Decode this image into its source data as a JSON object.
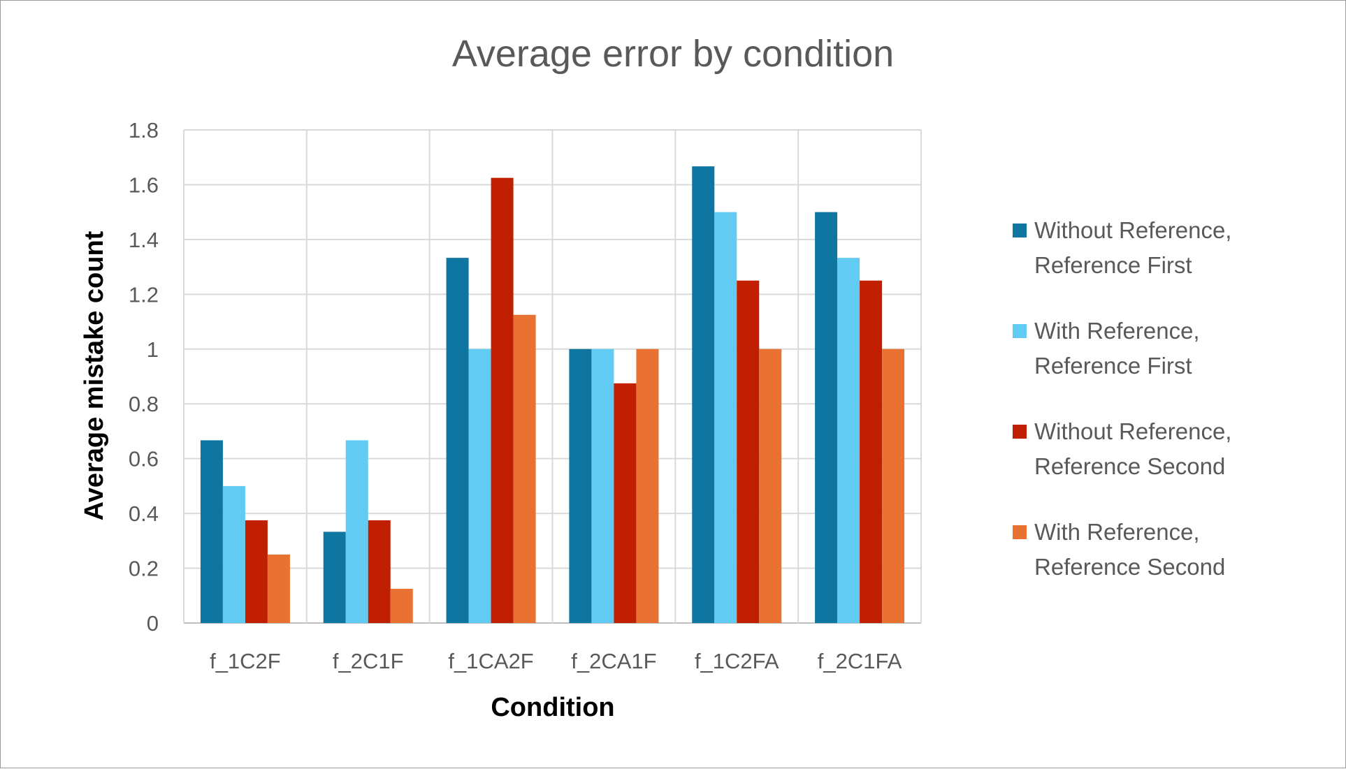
{
  "chart_data": {
    "type": "bar",
    "title": "Average error by condition",
    "xlabel": "Condition",
    "ylabel": "Average mistake count",
    "categories": [
      "f_1C2F",
      "f_2C1F",
      "f_1CA2F",
      "f_2CA1F",
      "f_1C2FA",
      "f_2C1FA"
    ],
    "ylim": [
      0,
      1.8
    ],
    "yticks": [
      "0",
      "0.2",
      "0.4",
      "0.6",
      "0.8",
      "1",
      "1.2",
      "1.4",
      "1.6",
      "1.8"
    ],
    "grid": true,
    "legend_position": "right",
    "series": [
      {
        "name_lines": [
          "Without Reference,",
          "Reference First"
        ],
        "color": "#0e76a0",
        "values": [
          0.667,
          0.333,
          1.333,
          1.0,
          1.667,
          1.5
        ]
      },
      {
        "name_lines": [
          "With Reference,",
          "Reference First"
        ],
        "color": "#61cbf4",
        "values": [
          0.5,
          0.667,
          1.0,
          1.0,
          1.5,
          1.333
        ]
      },
      {
        "name_lines": [
          "Without Reference,",
          "Reference Second"
        ],
        "color": "#c01f01",
        "values": [
          0.375,
          0.375,
          1.625,
          0.875,
          1.25,
          1.25
        ]
      },
      {
        "name_lines": [
          "With Reference,",
          "Reference Second"
        ],
        "color": "#e97132",
        "values": [
          0.25,
          0.125,
          1.125,
          1.0,
          1.0,
          1.0
        ]
      }
    ]
  }
}
